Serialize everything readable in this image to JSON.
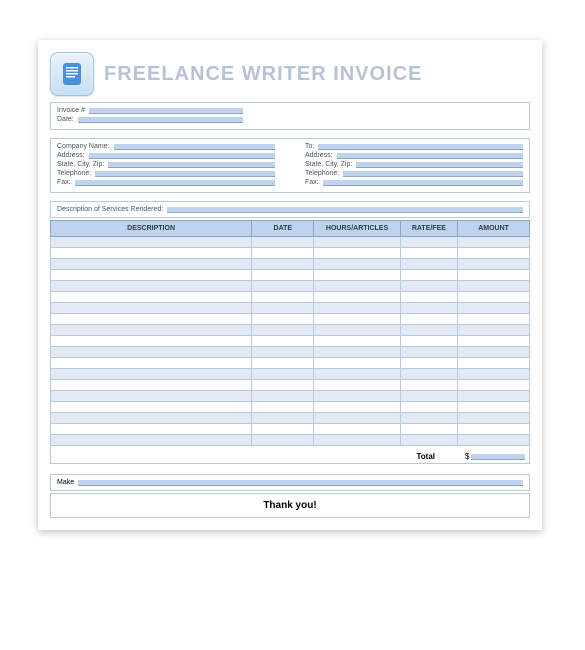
{
  "title": "FREELANCE WRITER INVOICE",
  "colors": {
    "page_bg": "#ffffff",
    "shadow": "rgba(0,0,0,0.25)",
    "title_color": "#b7c3d5",
    "border": "#b9c9de",
    "header_bg": "#c0d3ec",
    "header_border": "#8aa5c8",
    "stripe": "#e2e9f5",
    "field_fill": "#c0d3ec",
    "icon_grad_top": "#e8f2fb",
    "icon_grad_bot": "#c8dff3",
    "icon_doc": "#4a90d9",
    "text": "#4a5568"
  },
  "meta": {
    "invoice_label": "Invoice #",
    "date_label": "Date:"
  },
  "from": {
    "company_label": "Company Name:",
    "address_label": "Address:",
    "csz_label": "State, City, Zip:",
    "phone_label": "Telephone:",
    "fax_label": "Fax:"
  },
  "to": {
    "to_label": "To:",
    "address_label": "Address:",
    "csz_label": "State, City, Zip:",
    "phone_label": "Telephone:",
    "fax_label": "Fax:"
  },
  "services_label": "Description of Services Rendered:",
  "table": {
    "columns": [
      "DESCRIPTION",
      "DATE",
      "HOURS/ARTICLES",
      "RATE/FEE",
      "AMOUNT"
    ],
    "col_widths_pct": [
      42,
      13,
      18,
      12,
      15
    ],
    "row_count": 19,
    "striped": true
  },
  "total_label": "Total",
  "total_currency": "$",
  "make_label": "Make",
  "thank_you": "Thank you!",
  "typography": {
    "title_fontsize": 20,
    "label_fontsize": 7,
    "thankyou_fontsize": 10
  }
}
